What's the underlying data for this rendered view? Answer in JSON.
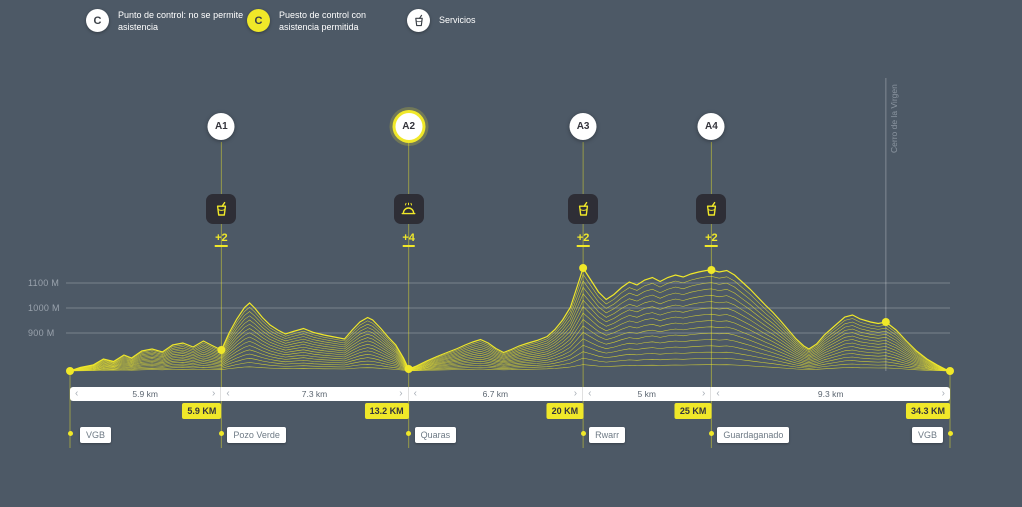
{
  "theme": {
    "background": "#4d5966",
    "accent_yellow": "#f0e829",
    "dark": "#2e2e36",
    "muted_text": "#9aa3ad",
    "badge_text": "#6e7a85",
    "white": "#ffffff"
  },
  "legend": {
    "items": [
      {
        "symbol": "C",
        "variant": "white",
        "line1": "Punto de control: no se permite",
        "line2": "asistencia"
      },
      {
        "symbol": "C",
        "variant": "yellow",
        "line1": "Puesto de control con",
        "line2": "asistencia permitida"
      },
      {
        "symbol": "cup-icon",
        "variant": "white",
        "line1": "Servicios",
        "line2": ""
      }
    ]
  },
  "axis": {
    "tick_labels": [
      "1100 M",
      "1000 M",
      "900 M"
    ]
  },
  "checkpoints": [
    {
      "id": "A1",
      "support": "+2",
      "icon": "cup-icon",
      "highlighted": false
    },
    {
      "id": "A2",
      "support": "+4",
      "icon": "dome-icon",
      "highlighted": true
    },
    {
      "id": "A3",
      "support": "+2",
      "icon": "cup-icon",
      "highlighted": false
    },
    {
      "id": "A4",
      "support": "+2",
      "icon": "cup-icon",
      "highlighted": false
    }
  ],
  "segments": [
    "5.9 km",
    "7.3 km",
    "6.7 km",
    "5 km",
    "9.3 km"
  ],
  "km_markers": [
    "5.9 KM",
    "13.2 KM",
    "20 KM",
    "25 KM",
    "34.3 KM"
  ],
  "locations": [
    "VGB",
    "Pozo Verde",
    "Quaras",
    "Rwarr",
    "Guardaganado",
    "VGB"
  ],
  "annotation": {
    "peak_label": "Cerro de la Virgen"
  },
  "icons": {
    "chevron_left": "‹",
    "chevron_right": "›"
  },
  "chart_data": {
    "type": "area",
    "y_gridlines_m": [
      1100,
      1000,
      900
    ],
    "total_km": 34.3,
    "finish_km": 34.3,
    "base_elevation_m": 748,
    "checkpoints_km": [
      5.9,
      13.2,
      20,
      25
    ],
    "segment_distances_km": [
      5.9,
      7.3,
      6.7,
      5,
      9.3
    ],
    "peak_annotation": {
      "label": "Cerro de la Virgen",
      "km": 31.8,
      "elevation_m": 944
    },
    "markers": [
      [
        0,
        748
      ],
      [
        5.9,
        832
      ],
      [
        13.2,
        756
      ],
      [
        20,
        1160
      ],
      [
        25,
        1152
      ],
      [
        31.8,
        944
      ],
      [
        34.3,
        748
      ]
    ],
    "profile": [
      [
        0,
        748
      ],
      [
        0.4,
        762
      ],
      [
        0.9,
        772
      ],
      [
        1.3,
        796
      ],
      [
        1.7,
        786
      ],
      [
        2.1,
        812
      ],
      [
        2.4,
        800
      ],
      [
        2.8,
        828
      ],
      [
        3.2,
        836
      ],
      [
        3.6,
        824
      ],
      [
        4.0,
        852
      ],
      [
        4.4,
        860
      ],
      [
        4.8,
        844
      ],
      [
        5.2,
        868
      ],
      [
        5.5,
        852
      ],
      [
        5.9,
        832
      ],
      [
        6.2,
        900
      ],
      [
        6.5,
        956
      ],
      [
        6.8,
        1002
      ],
      [
        7.0,
        1020
      ],
      [
        7.2,
        1000
      ],
      [
        7.5,
        962
      ],
      [
        7.8,
        932
      ],
      [
        8.1,
        912
      ],
      [
        8.4,
        896
      ],
      [
        8.7,
        906
      ],
      [
        9.1,
        918
      ],
      [
        9.5,
        902
      ],
      [
        9.9,
        892
      ],
      [
        10.3,
        884
      ],
      [
        10.7,
        876
      ],
      [
        11.0,
        912
      ],
      [
        11.3,
        944
      ],
      [
        11.6,
        962
      ],
      [
        11.8,
        952
      ],
      [
        12.1,
        920
      ],
      [
        12.4,
        884
      ],
      [
        12.7,
        852
      ],
      [
        13.0,
        800
      ],
      [
        13.2,
        756
      ],
      [
        13.5,
        768
      ],
      [
        13.9,
        788
      ],
      [
        14.3,
        806
      ],
      [
        14.7,
        822
      ],
      [
        15.1,
        838
      ],
      [
        15.4,
        852
      ],
      [
        15.7,
        864
      ],
      [
        16.0,
        874
      ],
      [
        16.3,
        860
      ],
      [
        16.6,
        838
      ],
      [
        16.9,
        822
      ],
      [
        17.2,
        834
      ],
      [
        17.5,
        848
      ],
      [
        17.8,
        858
      ],
      [
        18.2,
        870
      ],
      [
        18.6,
        886
      ],
      [
        18.9,
        914
      ],
      [
        19.2,
        952
      ],
      [
        19.5,
        1002
      ],
      [
        19.8,
        1096
      ],
      [
        20.0,
        1160
      ],
      [
        20.3,
        1112
      ],
      [
        20.6,
        1064
      ],
      [
        20.9,
        1034
      ],
      [
        21.2,
        1054
      ],
      [
        21.5,
        1082
      ],
      [
        21.8,
        1104
      ],
      [
        22.1,
        1092
      ],
      [
        22.4,
        1112
      ],
      [
        22.7,
        1122
      ],
      [
        23.0,
        1106
      ],
      [
        23.3,
        1122
      ],
      [
        23.6,
        1132
      ],
      [
        23.9,
        1124
      ],
      [
        24.2,
        1136
      ],
      [
        24.5,
        1144
      ],
      [
        24.8,
        1150
      ],
      [
        25.0,
        1152
      ],
      [
        25.3,
        1144
      ],
      [
        25.6,
        1150
      ],
      [
        25.9,
        1132
      ],
      [
        26.2,
        1104
      ],
      [
        26.5,
        1076
      ],
      [
        26.8,
        1044
      ],
      [
        27.1,
        1012
      ],
      [
        27.4,
        982
      ],
      [
        27.7,
        948
      ],
      [
        28.0,
        912
      ],
      [
        28.3,
        876
      ],
      [
        28.6,
        848
      ],
      [
        28.8,
        836
      ],
      [
        29.1,
        856
      ],
      [
        29.4,
        892
      ],
      [
        29.8,
        928
      ],
      [
        30.2,
        964
      ],
      [
        30.5,
        972
      ],
      [
        30.8,
        956
      ],
      [
        31.2,
        944
      ],
      [
        31.5,
        938
      ],
      [
        31.8,
        944
      ],
      [
        32.2,
        912
      ],
      [
        32.6,
        868
      ],
      [
        33.0,
        828
      ],
      [
        33.4,
        796
      ],
      [
        33.8,
        772
      ],
      [
        34.1,
        756
      ],
      [
        34.3,
        748
      ]
    ]
  }
}
